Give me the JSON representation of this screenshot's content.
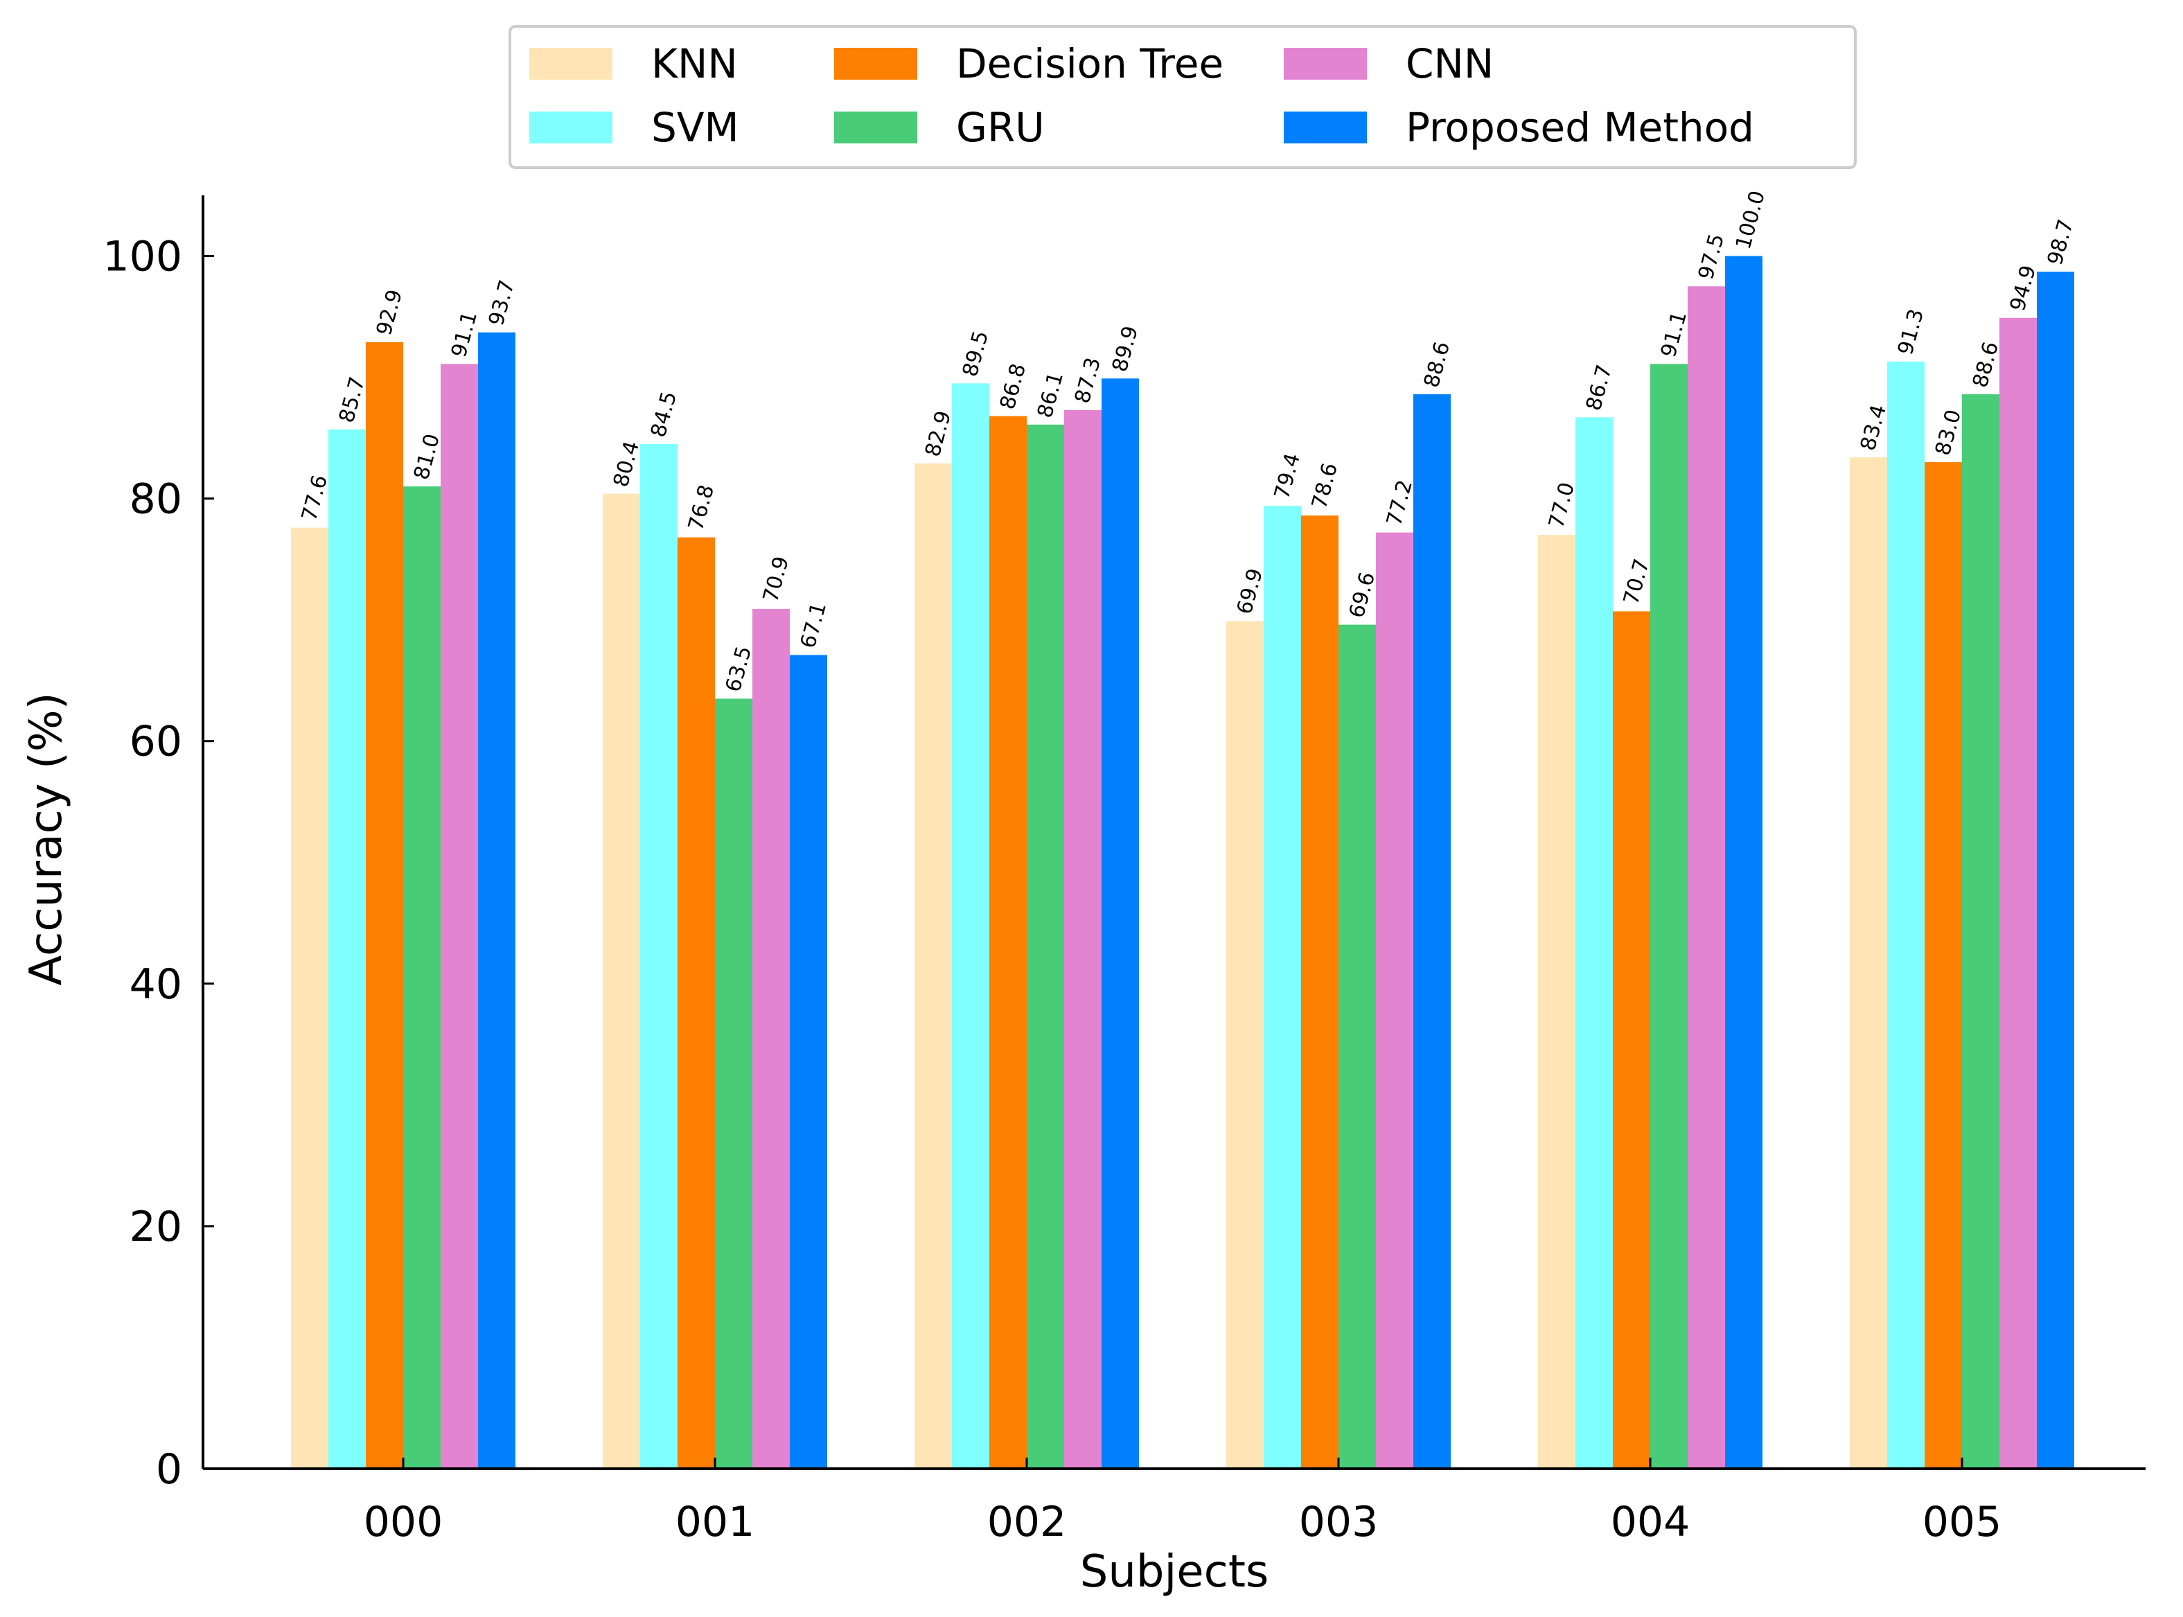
{
  "chart_data": {
    "type": "bar",
    "title": "",
    "xlabel": "Subjects",
    "ylabel": "Accuracy (%)",
    "ylim": [
      0,
      105
    ],
    "yticks": [
      0,
      20,
      40,
      60,
      80,
      100
    ],
    "categories": [
      "000",
      "001",
      "002",
      "003",
      "004",
      "005"
    ],
    "legend_position": "top-center",
    "grid": false,
    "series": [
      {
        "name": "KNN",
        "color": "#FFE4B5",
        "values": [
          77.6,
          80.4,
          82.9,
          69.9,
          77.0,
          83.4
        ],
        "labels": [
          "77.6",
          "80.4",
          "82.9",
          "69.9",
          "77.0",
          "83.4"
        ]
      },
      {
        "name": "SVM",
        "color": "#7FFFFF",
        "values": [
          85.7,
          84.5,
          89.5,
          79.4,
          86.7,
          91.3
        ],
        "labels": [
          "85.7",
          "84.5",
          "89.5",
          "79.4",
          "86.7",
          "91.3"
        ]
      },
      {
        "name": "Decision Tree",
        "color": "#FF7F00",
        "values": [
          92.9,
          76.8,
          86.8,
          78.6,
          70.7,
          83.0
        ],
        "labels": [
          "92.9",
          "76.8",
          "86.8",
          "78.6",
          "70.7",
          "83.0"
        ]
      },
      {
        "name": "GRU",
        "color": "#48CC78",
        "values": [
          81.0,
          63.5,
          86.1,
          69.6,
          91.1,
          88.6
        ],
        "labels": [
          "81.0",
          "63.5",
          "86.1",
          "69.6",
          "91.1",
          "88.6"
        ]
      },
      {
        "name": "CNN",
        "color": "#E384D1",
        "values": [
          91.1,
          70.9,
          87.3,
          77.2,
          97.5,
          94.9
        ],
        "labels": [
          "91.1",
          "70.9",
          "87.3",
          "77.2",
          "97.5",
          "94.9"
        ]
      },
      {
        "name": "Proposed Method",
        "color": "#0080FF",
        "values": [
          93.7,
          67.1,
          89.9,
          88.6,
          100.0,
          98.7
        ],
        "labels": [
          "93.7",
          "67.1",
          "89.9",
          "88.6",
          "100.0",
          "98.7"
        ]
      }
    ]
  }
}
